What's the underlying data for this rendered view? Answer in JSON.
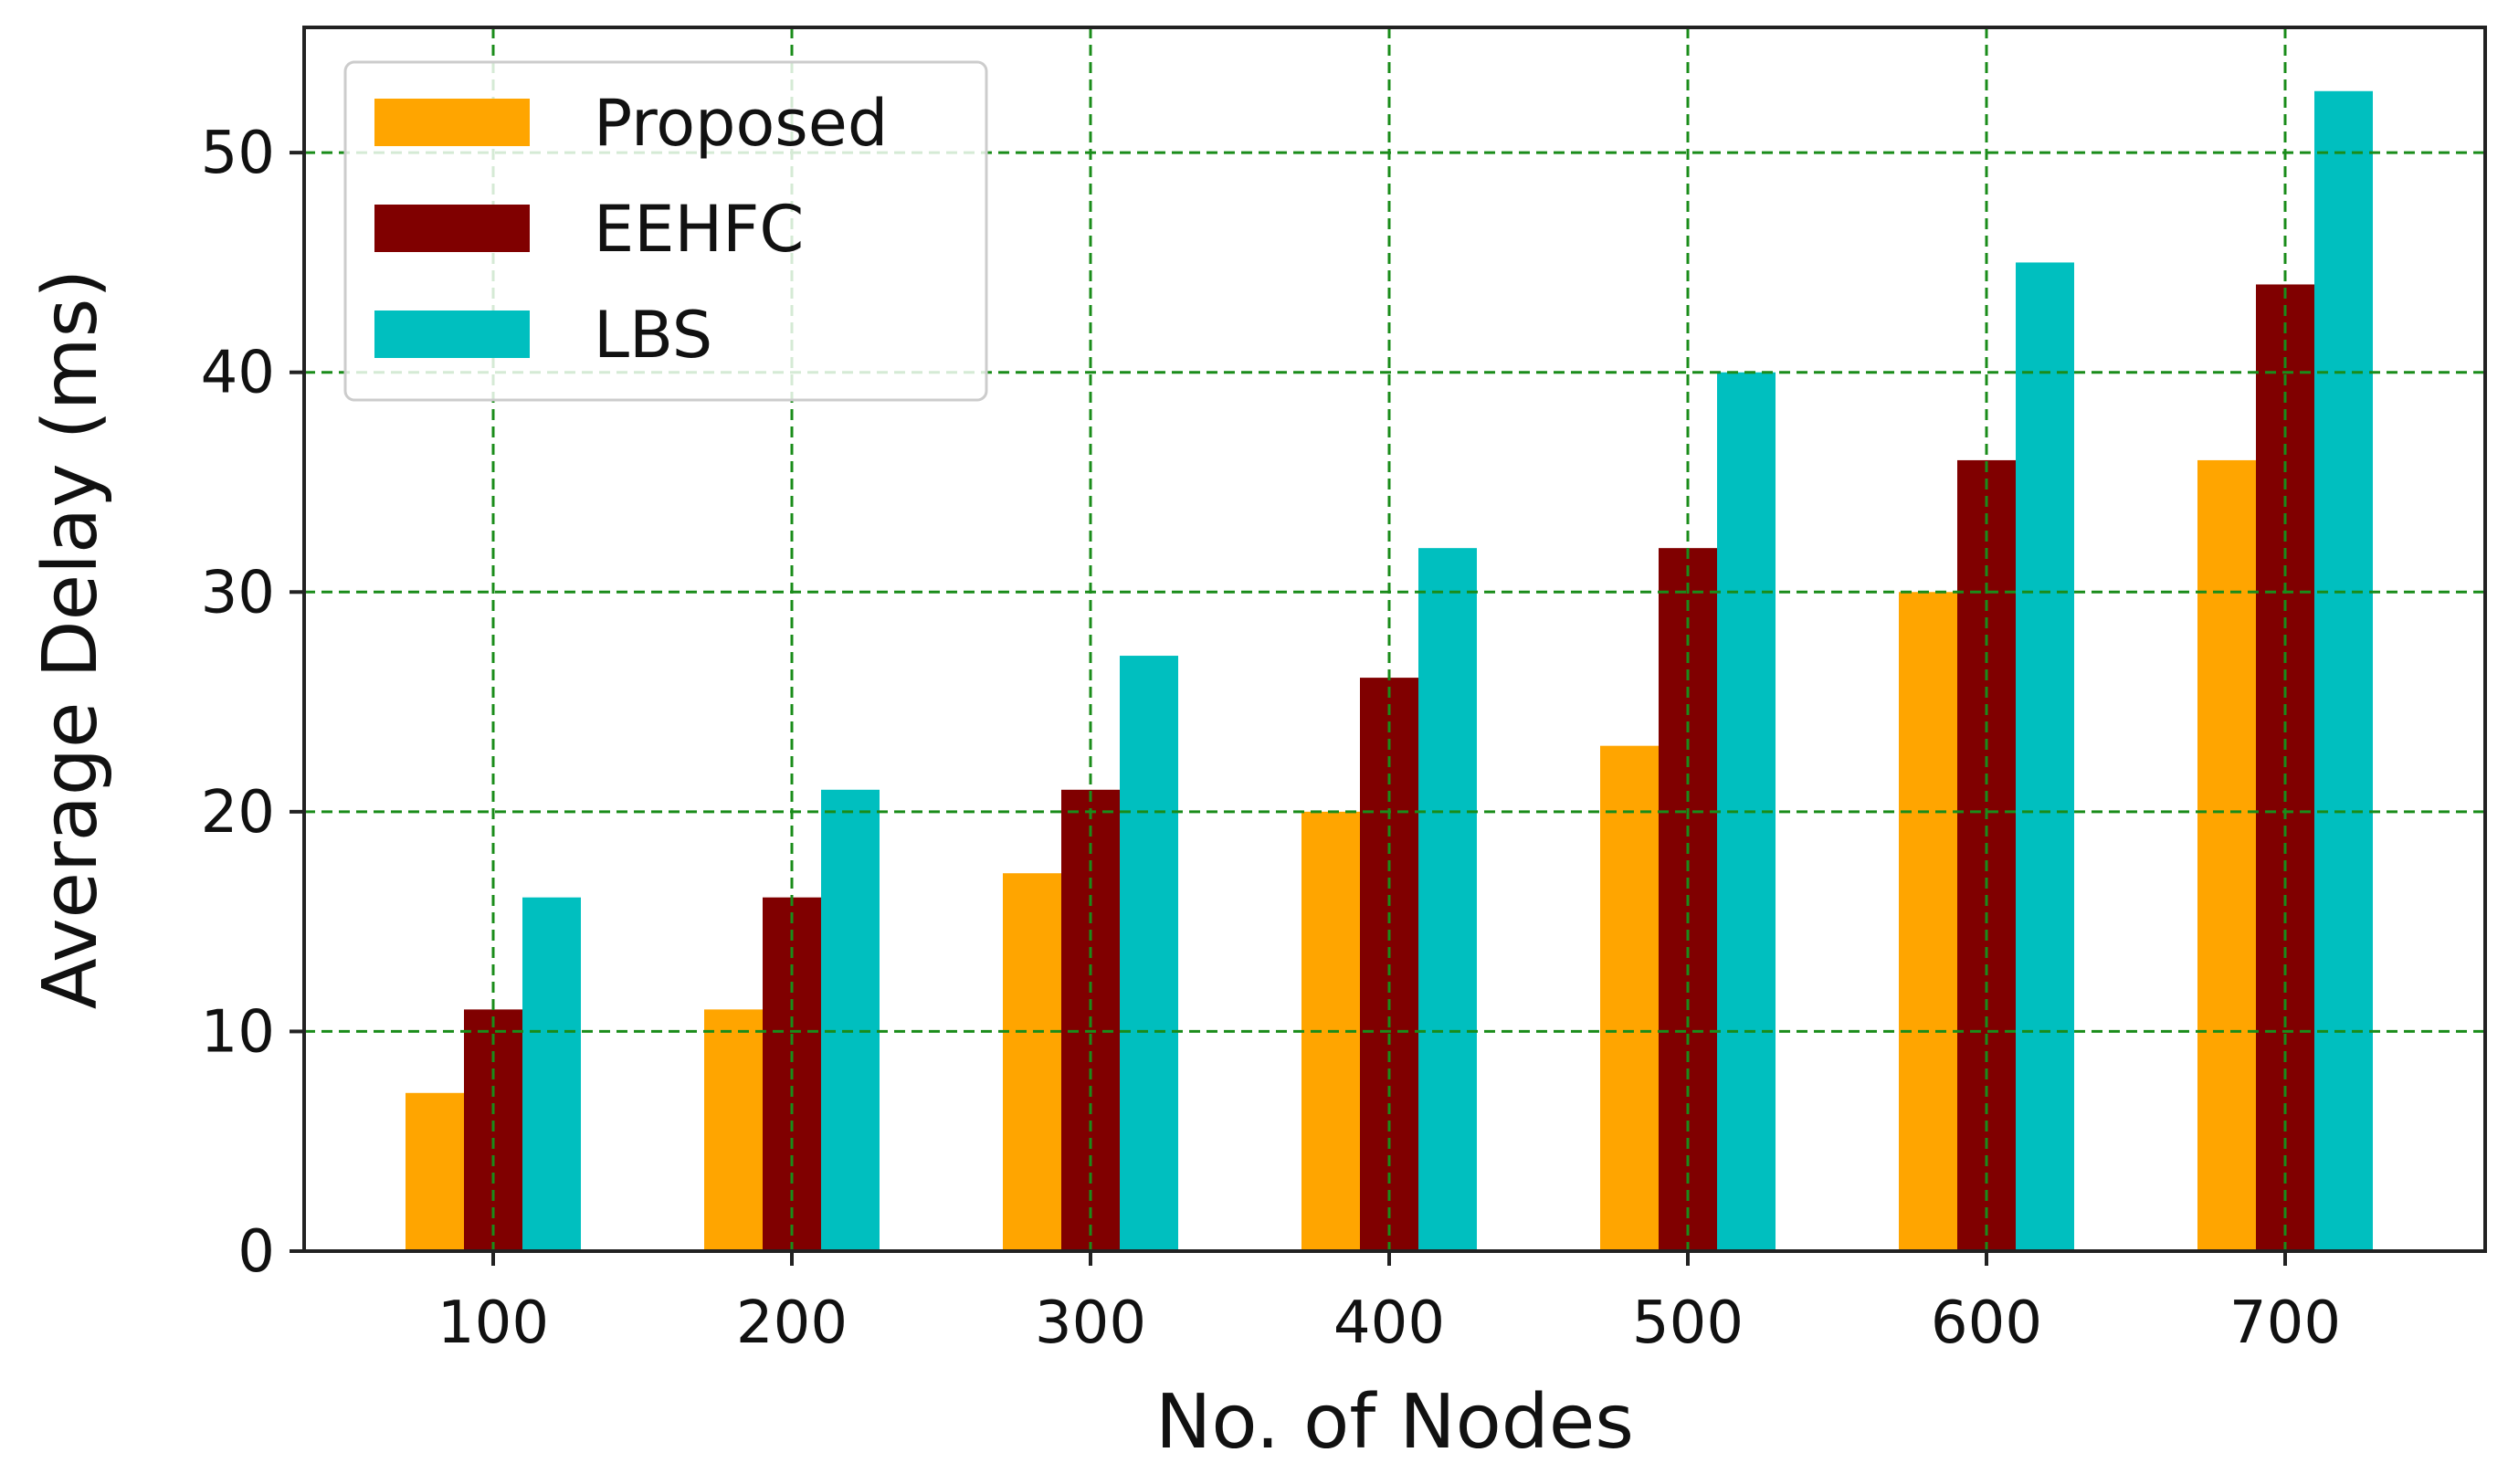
{
  "chart_data": {
    "type": "bar",
    "title": "",
    "xlabel": "No. of Nodes",
    "ylabel": "Average Delay (ms)",
    "categories": [
      "100",
      "200",
      "300",
      "400",
      "500",
      "600",
      "700"
    ],
    "series": [
      {
        "name": "Proposed",
        "color": "#ffa500",
        "values": [
          7.2,
          11,
          17.2,
          20,
          23,
          30,
          36
        ]
      },
      {
        "name": "EEHFC",
        "color": "#800000",
        "values": [
          11,
          16.1,
          21,
          26.1,
          32,
          36,
          44
        ]
      },
      {
        "name": "LBS",
        "color": "#00bfbf",
        "values": [
          16.1,
          21,
          27.1,
          32,
          40,
          45,
          52.8
        ]
      }
    ],
    "ylim": [
      0,
      55.7
    ],
    "yticks": [
      0,
      10,
      20,
      30,
      40,
      50
    ],
    "grid": true,
    "grid_color": "#1a8c1a",
    "legend_position": "top-left"
  }
}
